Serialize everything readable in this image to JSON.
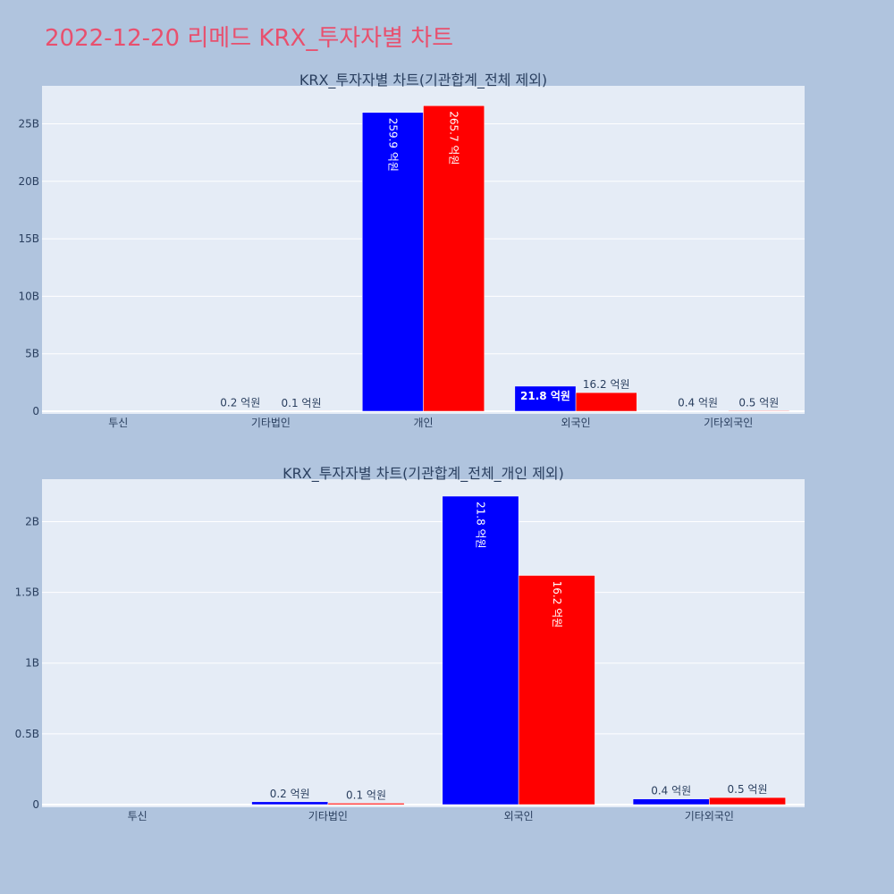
{
  "page": {
    "title": "2022-12-20 리메드 KRX_투자자별 차트"
  },
  "colors": {
    "background": "#b0c4de",
    "plot_background": "#e5ecf6",
    "title": "#e8506e",
    "series_buy": "#0000ff",
    "series_sell": "#ff0000"
  },
  "chart_data": [
    {
      "type": "bar",
      "title": "KRX_투자자별 차트(기관합계_전체 제외)",
      "categories": [
        "투신",
        "기타법인",
        "개인",
        "외국인",
        "기타외국인"
      ],
      "series": [
        {
          "values": [
            0,
            20000000,
            25990000000,
            2180000000,
            40000000
          ],
          "labels": [
            "",
            "0.2 억원",
            "259.9 억원",
            "21.8 억원",
            "0.4 억원"
          ]
        },
        {
          "values": [
            0,
            10000000,
            26570000000,
            1620000000,
            50000000
          ],
          "labels": [
            "",
            "0.1 억원",
            "265.7 억원",
            "16.2 억원",
            "0.5 억원"
          ]
        }
      ],
      "yticks": [
        0,
        5000000000,
        10000000000,
        15000000000,
        20000000000,
        25000000000
      ],
      "ytick_labels": [
        "0",
        "5B",
        "10B",
        "15B",
        "20B",
        "25B"
      ],
      "ylim": [
        0,
        28300000000
      ],
      "grid": true
    },
    {
      "type": "bar",
      "title": "KRX_투자자별 차트(기관합계_전체_개인 제외)",
      "categories": [
        "투신",
        "기타법인",
        "외국인",
        "기타외국인"
      ],
      "series": [
        {
          "values": [
            0,
            20000000,
            2180000000,
            40000000
          ],
          "labels": [
            "",
            "0.2 억원",
            "21.8 억원",
            "0.4 억원"
          ]
        },
        {
          "values": [
            0,
            10000000,
            1620000000,
            50000000
          ],
          "labels": [
            "",
            "0.1 억원",
            "16.2 억원",
            "0.5 억원"
          ]
        }
      ],
      "yticks": [
        0,
        500000000,
        1000000000,
        1500000000,
        2000000000
      ],
      "ytick_labels": [
        "0",
        "0.5B",
        "1B",
        "1.5B",
        "2B"
      ],
      "ylim": [
        0,
        2300000000
      ],
      "grid": true
    }
  ]
}
